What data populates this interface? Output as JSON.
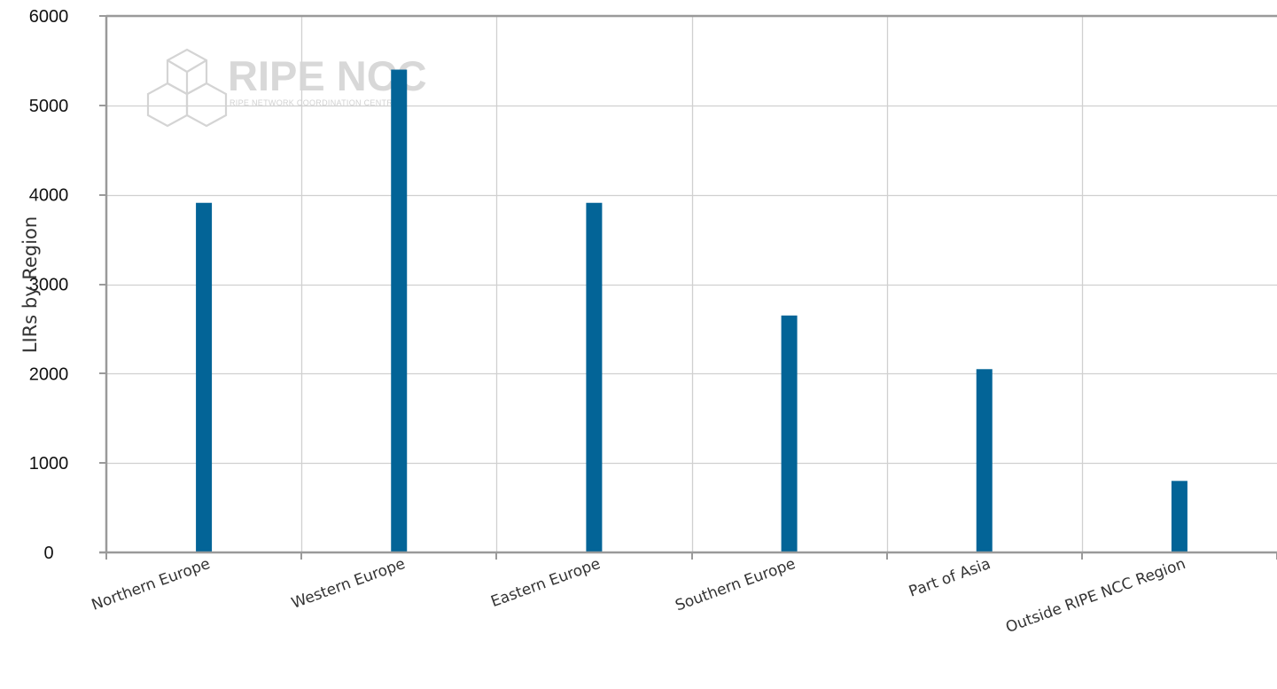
{
  "chart_data": {
    "type": "bar",
    "categories": [
      "Northern Europe",
      "Western Europe",
      "Eastern Europe",
      "Southern Europe",
      "Part of Asia",
      "Outside RIPE NCC Region"
    ],
    "values": [
      3910,
      5400,
      3910,
      2650,
      2050,
      800
    ],
    "title": "",
    "xlabel": "",
    "ylabel": "LIRs by Region",
    "ylim": [
      0,
      6000
    ],
    "yticks": [
      0,
      1000,
      2000,
      3000,
      4000,
      5000,
      6000
    ],
    "grid": true,
    "legend": "none",
    "colors": {
      "bar": "#036497",
      "grid": "#d0d0d0",
      "axis": "#9a9a9a"
    }
  },
  "watermark": {
    "name": "RIPE NCC",
    "subtitle": "RIPE NETWORK COORDINATION CENTRE"
  }
}
